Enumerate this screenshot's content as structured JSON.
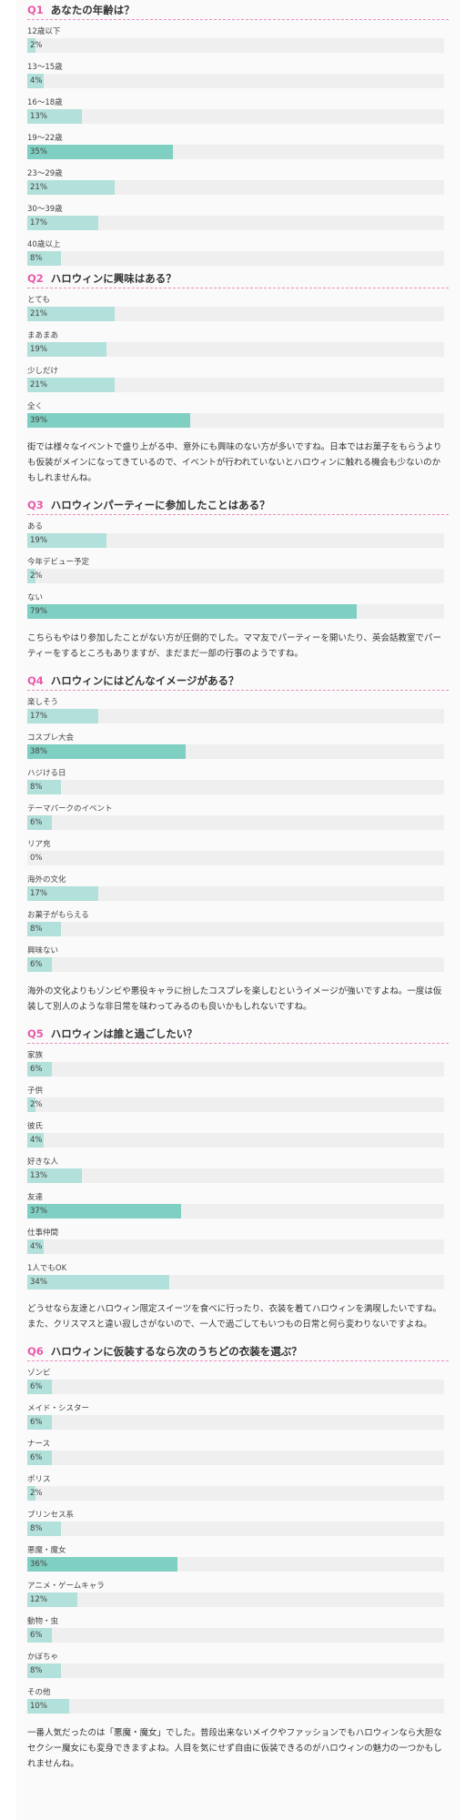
{
  "chart_data": [
    {
      "type": "bar",
      "question_no": "Q1",
      "title": "あなたの年齢は？",
      "categories": [
        "12歳以下",
        "13～15歳",
        "16～18歳",
        "19～22歳",
        "23～29歳",
        "30～39歳",
        "40歳以上"
      ],
      "values": [
        2,
        4,
        13,
        35,
        21,
        17,
        8
      ],
      "value_labels": [
        "2%",
        "4%",
        "13%",
        "35%",
        "21%",
        "17%",
        "8%"
      ],
      "comment": ""
    },
    {
      "type": "bar",
      "question_no": "Q2",
      "title": "ハロウィンに興味はある？",
      "categories": [
        "とても",
        "まあまあ",
        "少しだけ",
        "全く"
      ],
      "values": [
        21,
        19,
        21,
        39
      ],
      "value_labels": [
        "21%",
        "19%",
        "21%",
        "39%"
      ],
      "comment": "街では様々なイベントで盛り上がる中、意外にも興味のない方が多いですね。日本ではお菓子をもらうよりも仮装がメインになってきているので、イベントが行われていないとハロウィンに触れる機会も少ないのかもしれませんね。"
    },
    {
      "type": "bar",
      "question_no": "Q3",
      "title": "ハロウィンパーティーに参加したことはある？",
      "categories": [
        "ある",
        "今年デビュー予定",
        "ない"
      ],
      "values": [
        19,
        2,
        79
      ],
      "value_labels": [
        "19%",
        "2%",
        "79%"
      ],
      "comment": "こちらもやはり参加したことがない方が圧倒的でした。ママ友でパーティーを開いたり、英会話教室でパーティーをするところもありますが、まだまだ一部の行事のようですね。"
    },
    {
      "type": "bar",
      "question_no": "Q4",
      "title": "ハロウィンにはどんなイメージがある？",
      "categories": [
        "楽しそう",
        "コスプレ大会",
        "ハジける日",
        "テーマパークのイベント",
        "リア充",
        "海外の文化",
        "お菓子がもらえる",
        "興味ない"
      ],
      "values": [
        17,
        38,
        8,
        6,
        0,
        17,
        8,
        6
      ],
      "value_labels": [
        "17%",
        "38%",
        "8%",
        "6%",
        "0%",
        "17%",
        "8%",
        "6%"
      ],
      "comment": "海外の文化よりもゾンビや悪役キャラに扮したコスプレを楽しむというイメージが強いですよね。一度は仮装して別人のような非日常を味わってみるのも良いかもしれないですね。"
    },
    {
      "type": "bar",
      "question_no": "Q5",
      "title": "ハロウィンは誰と過ごしたい？",
      "categories": [
        "家族",
        "子供",
        "彼氏",
        "好きな人",
        "友達",
        "仕事仲間",
        "1人でもOK"
      ],
      "values": [
        6,
        2,
        4,
        13,
        37,
        4,
        34
      ],
      "value_labels": [
        "6%",
        "2%",
        "4%",
        "13%",
        "37%",
        "4%",
        "34%"
      ],
      "comment": "どうせなら友達とハロウィン限定スイーツを食べに行ったり、衣装を着てハロウィンを満喫したいですね。また、クリスマスと違い寂しさがないので、一人で過ごしてもいつもの日常と何ら変わりないですよね。"
    },
    {
      "type": "bar",
      "question_no": "Q6",
      "title": "ハロウィンに仮装するなら次のうちどの衣装を選ぶ？",
      "categories": [
        "ゾンビ",
        "メイド・シスター",
        "ナース",
        "ポリス",
        "プリンセス系",
        "悪魔・魔女",
        "アニメ・ゲームキャラ",
        "動物・虫",
        "かぼちゃ",
        "その他"
      ],
      "values": [
        6,
        6,
        6,
        2,
        8,
        36,
        12,
        6,
        8,
        10
      ],
      "value_labels": [
        "6%",
        "6%",
        "6%",
        "2%",
        "8%",
        "36%",
        "12%",
        "6%",
        "8%",
        "10%"
      ],
      "comment": "一番人気だったのは「悪魔・魔女」でした。普段出来ないメイクやファッションでもハロウィンなら大胆なセクシー魔女にも変身できますよね。人目を気にせず自由に仮装できるのがハロウィンの魅力の一つかもしれませんね。"
    }
  ]
}
